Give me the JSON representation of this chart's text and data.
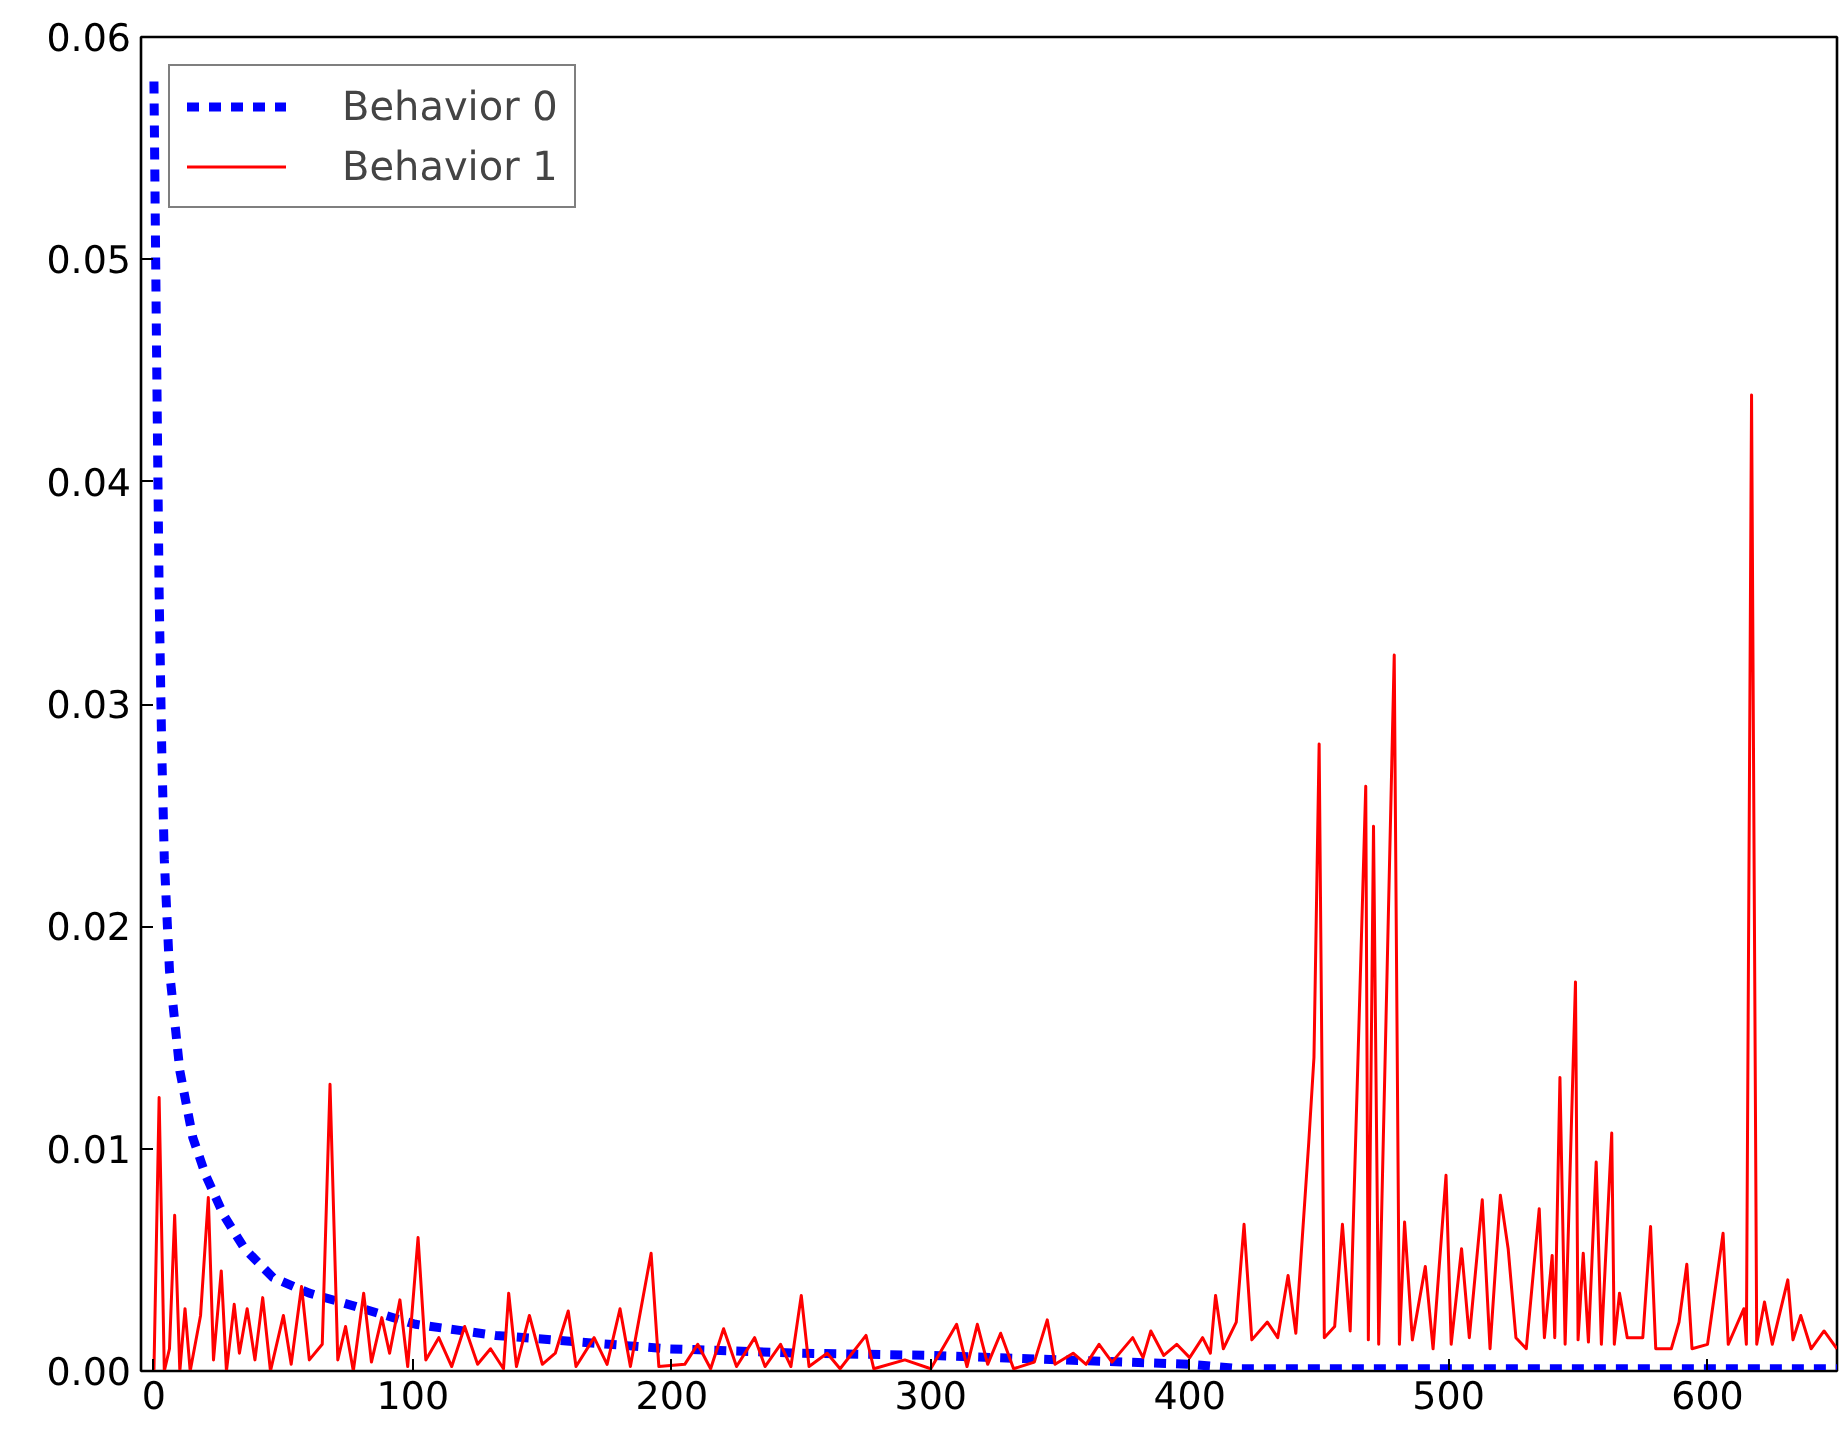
{
  "chart_data": {
    "type": "line",
    "xlim": [
      -5,
      650
    ],
    "ylim": [
      0,
      0.06
    ],
    "xticks": [
      0,
      100,
      200,
      300,
      400,
      500,
      600
    ],
    "yticks": [
      {
        "value": 0,
        "label": "0.00"
      },
      {
        "value": 0.01,
        "label": "0.01"
      },
      {
        "value": 0.02,
        "label": "0.02"
      },
      {
        "value": 0.03,
        "label": "0.03"
      },
      {
        "value": 0.04,
        "label": "0.04"
      },
      {
        "value": 0.05,
        "label": "0.05"
      },
      {
        "value": 0.06,
        "label": "0.06"
      }
    ],
    "grid": false,
    "legend": "top left",
    "series": [
      {
        "name": "Behavior 0",
        "color": "#0000ff",
        "line_style": "dashed",
        "x": [
          0,
          1,
          2,
          3,
          4,
          6,
          10,
          15,
          20,
          27,
          35,
          46,
          60,
          75,
          101,
          132,
          198,
          250,
          300,
          350,
          400,
          420,
          500,
          650
        ],
        "values": [
          0.058,
          0.046,
          0.035,
          0.028,
          0.023,
          0.018,
          0.0135,
          0.0105,
          0.0088,
          0.007,
          0.0055,
          0.0042,
          0.0035,
          0.003,
          0.0021,
          0.0016,
          0.001,
          0.0008,
          0.0007,
          0.0005,
          0.0003,
          0.0001,
          0.0001,
          0.0001
        ]
      },
      {
        "name": "Behavior 1",
        "color": "#ff0000",
        "line_style": "solid",
        "x": [
          0,
          2,
          4,
          6,
          8,
          10,
          12,
          14,
          18,
          21,
          23,
          26,
          28,
          31,
          33,
          36,
          39,
          42,
          45,
          50,
          53,
          57,
          60,
          65,
          68,
          71,
          74,
          77,
          81,
          84,
          88,
          91,
          95,
          98,
          102,
          105,
          110,
          115,
          120,
          125,
          130,
          135,
          137,
          140,
          145,
          150,
          155,
          160,
          163,
          170,
          175,
          180,
          184,
          192,
          195,
          205,
          210,
          215,
          220,
          225,
          232,
          236,
          242,
          246,
          250,
          253,
          260,
          265,
          275,
          278,
          290,
          300,
          310,
          314,
          318,
          322,
          327,
          332,
          340,
          345,
          348,
          355,
          360,
          365,
          370,
          378,
          382,
          385,
          390,
          395,
          400,
          405,
          408,
          410,
          413,
          418,
          421,
          424,
          430,
          434,
          438,
          441,
          446,
          448,
          450,
          452,
          456,
          459,
          462,
          468,
          469,
          471,
          473,
          479,
          481,
          483,
          486,
          491,
          494,
          499,
          501,
          505,
          508,
          513,
          516,
          520,
          523,
          526,
          530,
          535,
          537,
          540,
          541,
          543,
          545,
          549,
          550,
          552,
          554,
          557,
          559,
          563,
          564,
          566,
          569,
          575,
          578,
          580,
          586,
          589,
          592,
          594,
          600,
          606,
          608,
          614,
          615,
          617,
          619,
          622,
          625,
          631,
          633,
          636,
          640,
          645,
          650
        ],
        "values": [
          0,
          0.0123,
          0,
          0.001,
          0.007,
          0,
          0.0028,
          0,
          0.0025,
          0.0078,
          0.0005,
          0.0045,
          0,
          0.003,
          0.0008,
          0.0028,
          0.0005,
          0.0033,
          0,
          0.0025,
          0.0003,
          0.0038,
          0.0005,
          0.0012,
          0.0129,
          0.0005,
          0.002,
          0,
          0.0035,
          0.0004,
          0.0024,
          0.0008,
          0.0032,
          0.0002,
          0.006,
          0.0005,
          0.0015,
          0.0002,
          0.002,
          0.0003,
          0.001,
          0.0001,
          0.0035,
          0.0002,
          0.0025,
          0.0003,
          0.0008,
          0.0027,
          0.0002,
          0.0015,
          0.0003,
          0.0028,
          0.0002,
          0.0053,
          0.0002,
          0.0003,
          0.0012,
          0.0001,
          0.0019,
          0.0002,
          0.0015,
          0.0002,
          0.0012,
          0.0002,
          0.0034,
          0.0002,
          0.0008,
          0.0001,
          0.0016,
          0.0001,
          0.0005,
          0.0001,
          0.0021,
          0.0002,
          0.0021,
          0.0003,
          0.0017,
          0.0001,
          0.0004,
          0.0023,
          0.0003,
          0.0008,
          0.0003,
          0.0012,
          0.0004,
          0.0015,
          0.0006,
          0.0018,
          0.0007,
          0.0012,
          0.0006,
          0.0015,
          0.0008,
          0.0034,
          0.001,
          0.0022,
          0.0066,
          0.0014,
          0.0022,
          0.0015,
          0.0043,
          0.0017,
          0.0103,
          0.0141,
          0.0282,
          0.0015,
          0.002,
          0.0066,
          0.0018,
          0.0263,
          0.0014,
          0.0245,
          0.0012,
          0.0322,
          0.0012,
          0.0067,
          0.0014,
          0.0047,
          0.001,
          0.0088,
          0.0012,
          0.0055,
          0.0015,
          0.0077,
          0.001,
          0.0079,
          0.0055,
          0.0015,
          0.001,
          0.0073,
          0.0015,
          0.0052,
          0.0015,
          0.0132,
          0.0012,
          0.0175,
          0.0014,
          0.0053,
          0.0013,
          0.0094,
          0.0012,
          0.0107,
          0.0012,
          0.0035,
          0.0015,
          0.0015,
          0.0065,
          0.001,
          0.001,
          0.0022,
          0.0048,
          0.001,
          0.0012,
          0.0062,
          0.0012,
          0.0028,
          0.0012,
          0.0439,
          0.0012,
          0.0031,
          0.0012,
          0.0041,
          0.0014,
          0.0025,
          0.001,
          0.0018,
          0.001
        ]
      }
    ]
  }
}
